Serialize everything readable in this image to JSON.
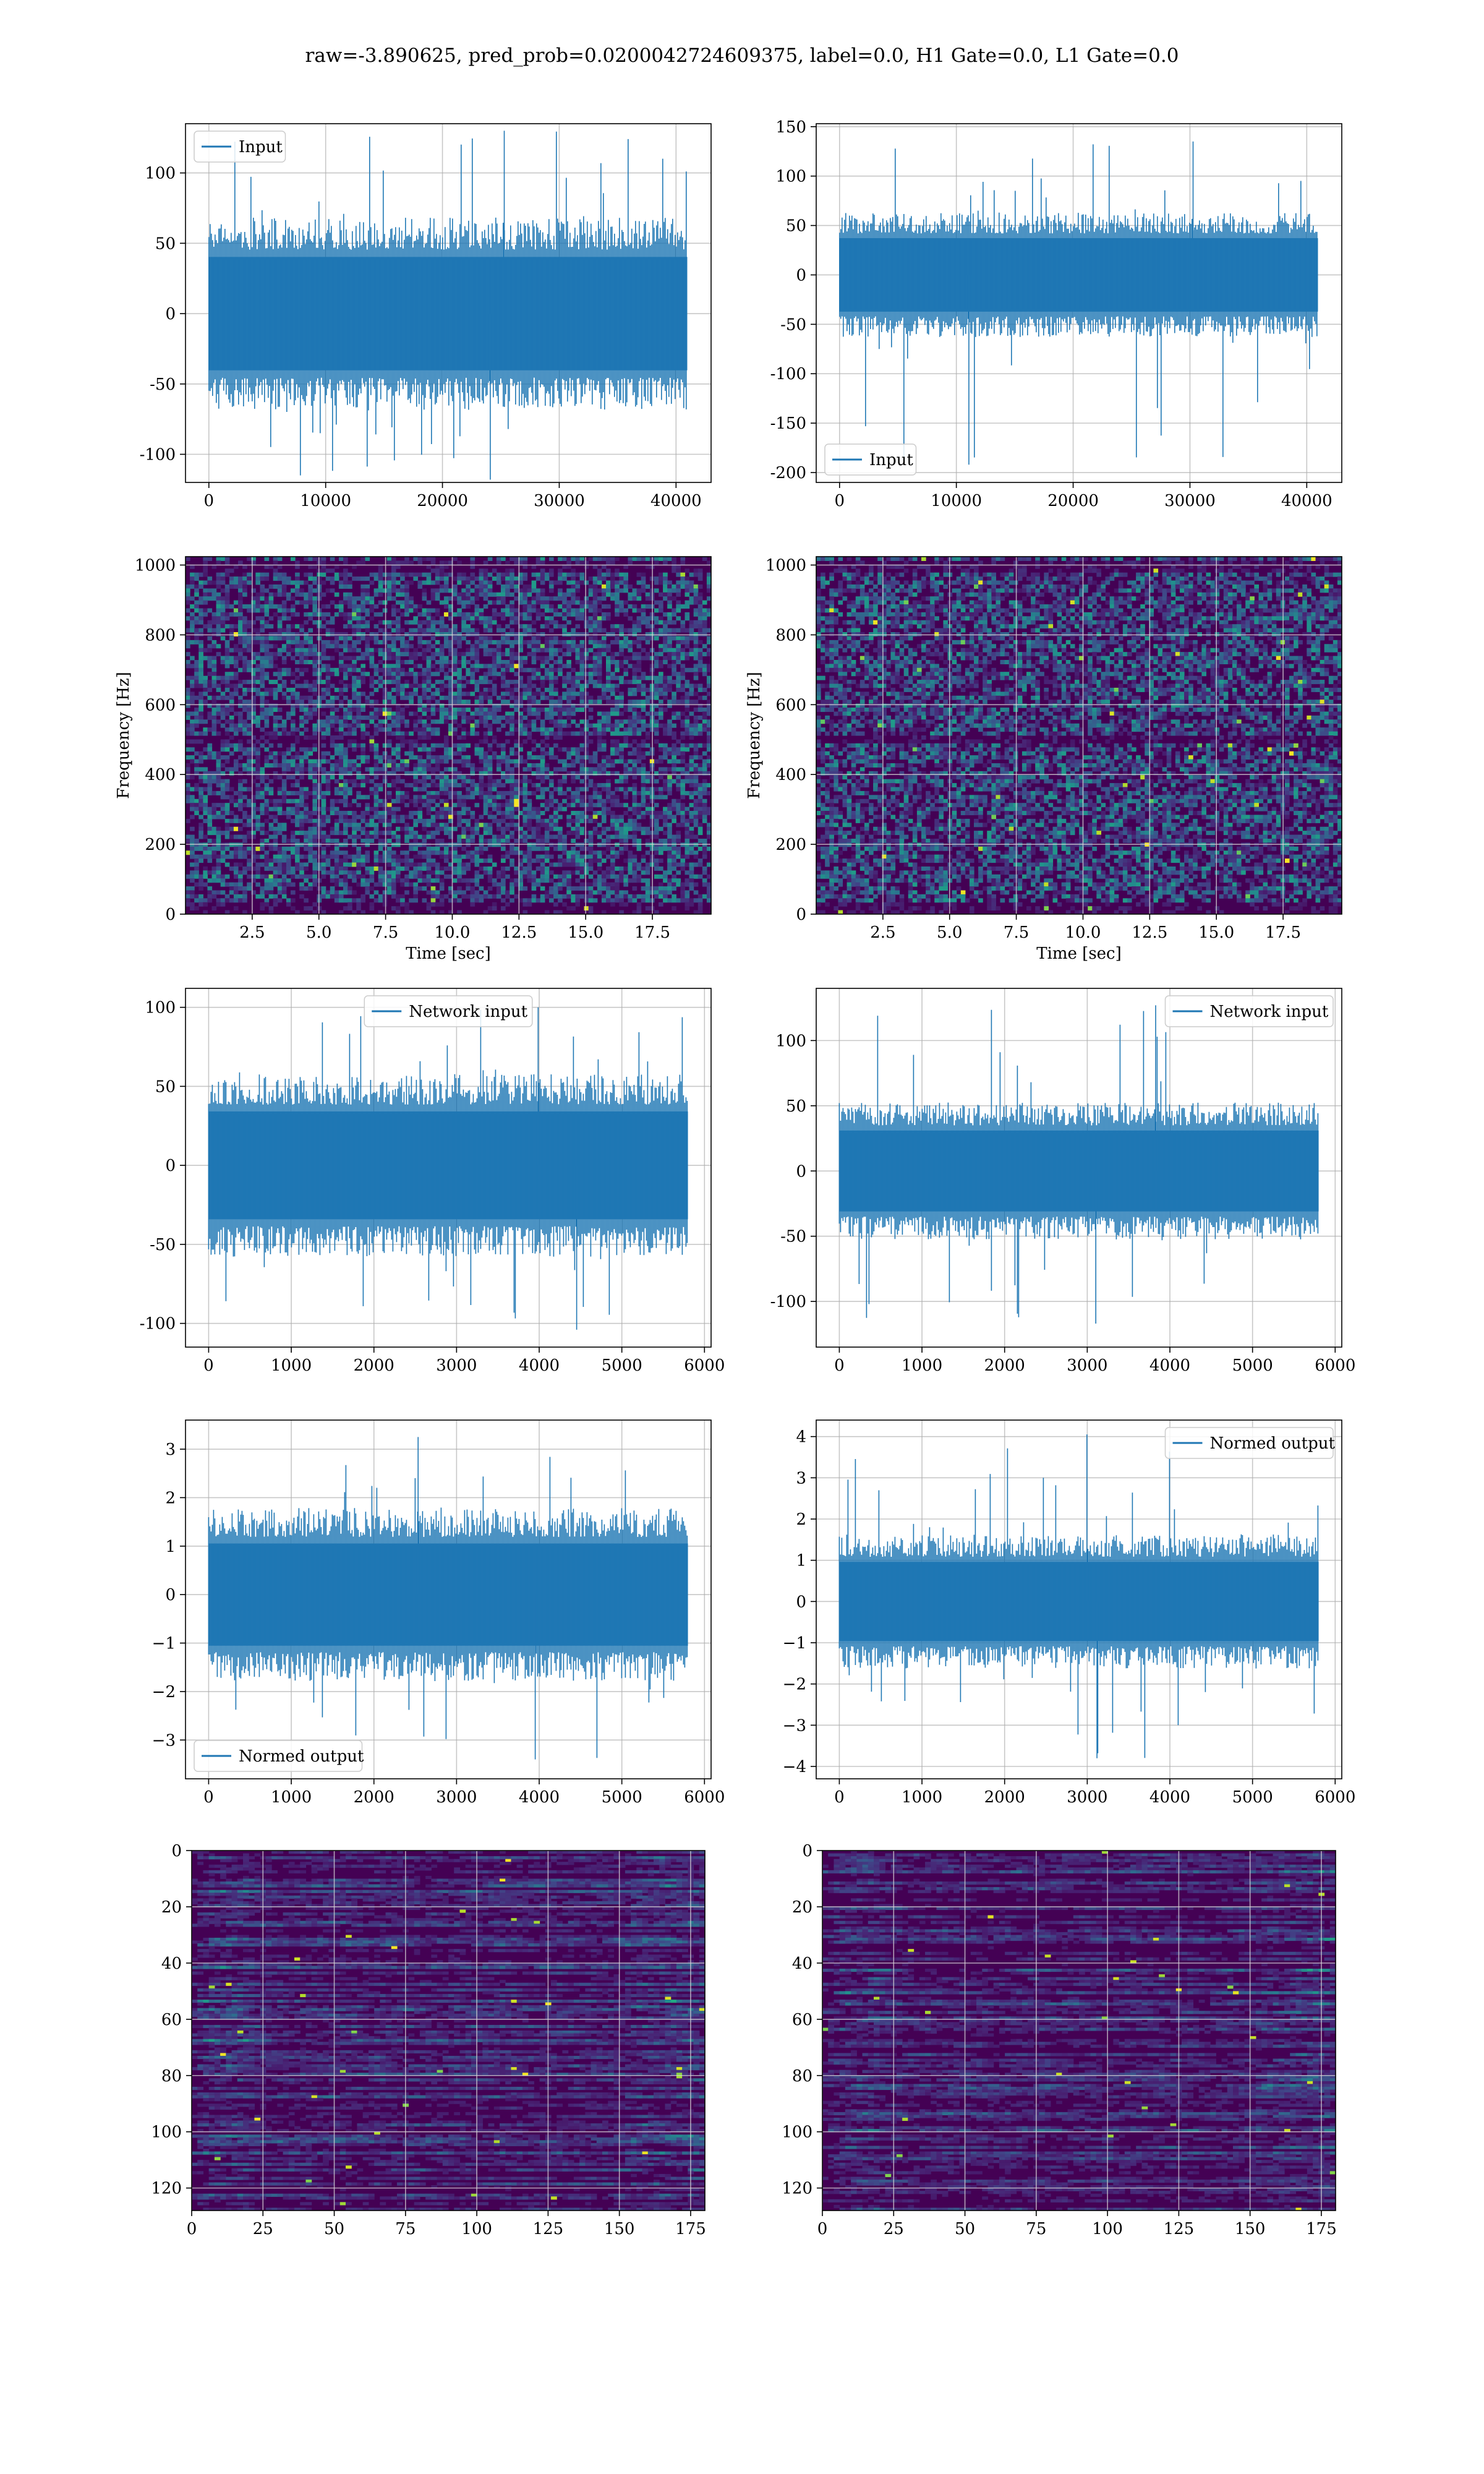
{
  "title": "raw=-3.890625, pred_prob=0.0200042724609375, label=0.0, H1 Gate=0.0, L1 Gate=0.0",
  "colors": {
    "series": "#1f77b4",
    "grid": "#b0b0b0",
    "viridis": [
      "#440154",
      "#482475",
      "#414487",
      "#355f8d",
      "#2a788e",
      "#21918c",
      "#22a884",
      "#44bf70",
      "#7ad151",
      "#bddf26",
      "#fde725"
    ]
  },
  "chart_data": [
    {
      "id": "input-h1",
      "type": "line",
      "grid": true,
      "legend": {
        "label": "Input",
        "loc": "upper-left"
      },
      "xlim": [
        -2000,
        43000
      ],
      "ylim": [
        -120,
        135
      ],
      "xticks": [
        0,
        10000,
        20000,
        30000,
        40000
      ],
      "yticks": [
        -100,
        -50,
        0,
        50,
        100
      ],
      "series": [
        {
          "name": "Input",
          "x_range": [
            0,
            40960
          ],
          "band": 65,
          "spike_max": 130,
          "spike_min": -118,
          "peaks_extent": [
            -118,
            130
          ]
        }
      ]
    },
    {
      "id": "input-l1",
      "type": "line",
      "grid": true,
      "legend": {
        "label": "Input",
        "loc": "lower-left"
      },
      "xlim": [
        -2000,
        43000
      ],
      "ylim": [
        -210,
        153
      ],
      "xticks": [
        0,
        10000,
        20000,
        30000,
        40000
      ],
      "yticks": [
        -200,
        -150,
        -100,
        -50,
        0,
        50,
        100,
        150
      ],
      "series": [
        {
          "name": "Input",
          "x_range": [
            0,
            40960
          ],
          "band": 60,
          "spike_max": 135,
          "spike_min": -192,
          "peaks_extent": [
            -192,
            135
          ]
        }
      ]
    },
    {
      "id": "spectrogram-h1",
      "type": "heatmap",
      "grid": true,
      "xlabel": "Time [sec]",
      "ylabel": "Frequency [Hz]",
      "xlim": [
        0,
        19.7
      ],
      "ylim": [
        0,
        1024
      ],
      "xticks": [
        "2.5",
        "5.0",
        "7.5",
        "10.0",
        "12.5",
        "15.0",
        "17.5"
      ],
      "xtick_values": [
        2.5,
        5,
        7.5,
        10,
        12.5,
        15,
        17.5
      ],
      "yticks": [
        0,
        200,
        400,
        600,
        800,
        1000
      ],
      "colormap": "viridis",
      "dark_bands_hz": [
        500,
        1000,
        20
      ]
    },
    {
      "id": "spectrogram-l1",
      "type": "heatmap",
      "grid": true,
      "xlabel": "Time [sec]",
      "ylabel": "Frequency [Hz]",
      "xlim": [
        0,
        19.7
      ],
      "ylim": [
        0,
        1024
      ],
      "xticks": [
        "2.5",
        "5.0",
        "7.5",
        "10.0",
        "12.5",
        "15.0",
        "17.5"
      ],
      "xtick_values": [
        2.5,
        5,
        7.5,
        10,
        12.5,
        15,
        17.5
      ],
      "yticks": [
        0,
        200,
        400,
        600,
        800,
        1000
      ],
      "colormap": "viridis",
      "dark_bands_hz": [
        500,
        1000,
        20
      ]
    },
    {
      "id": "network-input-h1",
      "type": "line",
      "grid": true,
      "legend": {
        "label": "Network input",
        "loc": "upper-center"
      },
      "xlim": [
        -280,
        6080
      ],
      "ylim": [
        -115,
        112
      ],
      "xticks": [
        0,
        1000,
        2000,
        3000,
        4000,
        5000,
        6000
      ],
      "yticks": [
        -100,
        -50,
        0,
        50,
        100
      ],
      "series": [
        {
          "name": "Network input",
          "x_range": [
            0,
            5800
          ],
          "band": 55,
          "spike_max": 100,
          "spike_min": -104,
          "peaks_extent": [
            -104,
            100
          ]
        }
      ]
    },
    {
      "id": "network-input-l1",
      "type": "line",
      "grid": true,
      "legend": {
        "label": "Network input",
        "loc": "upper-right"
      },
      "xlim": [
        -280,
        6080
      ],
      "ylim": [
        -135,
        140
      ],
      "xticks": [
        0,
        1000,
        2000,
        3000,
        4000,
        5000,
        6000
      ],
      "yticks": [
        -100,
        -50,
        0,
        50,
        100
      ],
      "series": [
        {
          "name": "Network input",
          "x_range": [
            0,
            5800
          ],
          "band": 50,
          "spike_max": 127,
          "spike_min": -117,
          "peaks_extent": [
            -117,
            127
          ]
        }
      ]
    },
    {
      "id": "normed-output-h1",
      "type": "line",
      "grid": true,
      "legend": {
        "label": "Normed output",
        "loc": "lower-left"
      },
      "xlim": [
        -280,
        6080
      ],
      "ylim": [
        -3.8,
        3.6
      ],
      "xticks": [
        0,
        1000,
        2000,
        3000,
        4000,
        5000,
        6000
      ],
      "yticks": [
        -3,
        -2,
        -1,
        0,
        1,
        2,
        3
      ],
      "yticklabels": [
        "−3",
        "−2",
        "−1",
        "0",
        "1",
        "2",
        "3"
      ],
      "series": [
        {
          "name": "Normed output",
          "x_range": [
            0,
            5800
          ],
          "band": 1.7,
          "spike_max": 3.25,
          "spike_min": -3.4,
          "peaks_extent": [
            -3.4,
            3.25
          ]
        }
      ]
    },
    {
      "id": "normed-output-l1",
      "type": "line",
      "grid": true,
      "legend": {
        "label": "Normed output",
        "loc": "upper-right"
      },
      "xlim": [
        -280,
        6080
      ],
      "ylim": [
        -4.3,
        4.4
      ],
      "xticks": [
        0,
        1000,
        2000,
        3000,
        4000,
        5000,
        6000
      ],
      "yticks": [
        -4,
        -3,
        -2,
        -1,
        0,
        1,
        2,
        3,
        4
      ],
      "yticklabels": [
        "−4",
        "−3",
        "−2",
        "−1",
        "0",
        "1",
        "2",
        "3",
        "4"
      ],
      "series": [
        {
          "name": "Normed output",
          "x_range": [
            0,
            5800
          ],
          "band": 1.55,
          "spike_max": 4.05,
          "spike_min": -3.8,
          "peaks_extent": [
            -3.8,
            4.05
          ]
        }
      ]
    },
    {
      "id": "feature-map-h1",
      "type": "heatmap",
      "grid": true,
      "xlim": [
        0,
        180
      ],
      "ylim": [
        128,
        0
      ],
      "xticks": [
        0,
        25,
        50,
        75,
        100,
        125,
        150,
        175
      ],
      "yticks": [
        0,
        20,
        40,
        60,
        80,
        100,
        120
      ],
      "colormap": "viridis",
      "shape": [
        128,
        180
      ]
    },
    {
      "id": "feature-map-l1",
      "type": "heatmap",
      "grid": true,
      "xlim": [
        0,
        180
      ],
      "ylim": [
        128,
        0
      ],
      "xticks": [
        0,
        25,
        50,
        75,
        100,
        125,
        150,
        175
      ],
      "yticks": [
        0,
        20,
        40,
        60,
        80,
        100,
        120
      ],
      "colormap": "viridis",
      "shape": [
        128,
        180
      ]
    }
  ]
}
